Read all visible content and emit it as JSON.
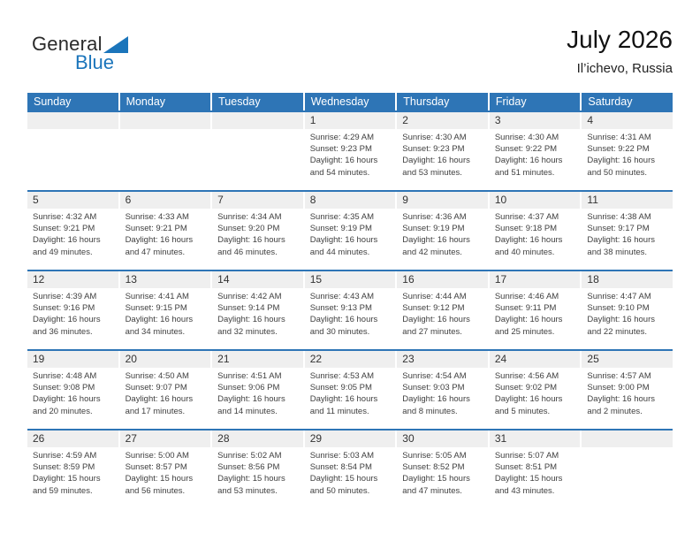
{
  "logo": {
    "part1": "General",
    "part2": "Blue"
  },
  "header": {
    "title": "July 2026",
    "location": "Il’ichevo, Russia"
  },
  "colors": {
    "header_blue": "#2e75b6",
    "logo_blue": "#1b75bb",
    "strip_gray": "#efefef",
    "body_text": "#404040"
  },
  "calendar": {
    "day_headers": [
      "Sunday",
      "Monday",
      "Tuesday",
      "Wednesday",
      "Thursday",
      "Friday",
      "Saturday"
    ],
    "weeks": [
      [
        {
          "day": ""
        },
        {
          "day": ""
        },
        {
          "day": ""
        },
        {
          "day": "1",
          "l1": "Sunrise: 4:29 AM",
          "l2": "Sunset: 9:23 PM",
          "l3": "Daylight: 16 hours",
          "l4": "and 54 minutes."
        },
        {
          "day": "2",
          "l1": "Sunrise: 4:30 AM",
          "l2": "Sunset: 9:23 PM",
          "l3": "Daylight: 16 hours",
          "l4": "and 53 minutes."
        },
        {
          "day": "3",
          "l1": "Sunrise: 4:30 AM",
          "l2": "Sunset: 9:22 PM",
          "l3": "Daylight: 16 hours",
          "l4": "and 51 minutes."
        },
        {
          "day": "4",
          "l1": "Sunrise: 4:31 AM",
          "l2": "Sunset: 9:22 PM",
          "l3": "Daylight: 16 hours",
          "l4": "and 50 minutes."
        }
      ],
      [
        {
          "day": "5",
          "l1": "Sunrise: 4:32 AM",
          "l2": "Sunset: 9:21 PM",
          "l3": "Daylight: 16 hours",
          "l4": "and 49 minutes."
        },
        {
          "day": "6",
          "l1": "Sunrise: 4:33 AM",
          "l2": "Sunset: 9:21 PM",
          "l3": "Daylight: 16 hours",
          "l4": "and 47 minutes."
        },
        {
          "day": "7",
          "l1": "Sunrise: 4:34 AM",
          "l2": "Sunset: 9:20 PM",
          "l3": "Daylight: 16 hours",
          "l4": "and 46 minutes."
        },
        {
          "day": "8",
          "l1": "Sunrise: 4:35 AM",
          "l2": "Sunset: 9:19 PM",
          "l3": "Daylight: 16 hours",
          "l4": "and 44 minutes."
        },
        {
          "day": "9",
          "l1": "Sunrise: 4:36 AM",
          "l2": "Sunset: 9:19 PM",
          "l3": "Daylight: 16 hours",
          "l4": "and 42 minutes."
        },
        {
          "day": "10",
          "l1": "Sunrise: 4:37 AM",
          "l2": "Sunset: 9:18 PM",
          "l3": "Daylight: 16 hours",
          "l4": "and 40 minutes."
        },
        {
          "day": "11",
          "l1": "Sunrise: 4:38 AM",
          "l2": "Sunset: 9:17 PM",
          "l3": "Daylight: 16 hours",
          "l4": "and 38 minutes."
        }
      ],
      [
        {
          "day": "12",
          "l1": "Sunrise: 4:39 AM",
          "l2": "Sunset: 9:16 PM",
          "l3": "Daylight: 16 hours",
          "l4": "and 36 minutes."
        },
        {
          "day": "13",
          "l1": "Sunrise: 4:41 AM",
          "l2": "Sunset: 9:15 PM",
          "l3": "Daylight: 16 hours",
          "l4": "and 34 minutes."
        },
        {
          "day": "14",
          "l1": "Sunrise: 4:42 AM",
          "l2": "Sunset: 9:14 PM",
          "l3": "Daylight: 16 hours",
          "l4": "and 32 minutes."
        },
        {
          "day": "15",
          "l1": "Sunrise: 4:43 AM",
          "l2": "Sunset: 9:13 PM",
          "l3": "Daylight: 16 hours",
          "l4": "and 30 minutes."
        },
        {
          "day": "16",
          "l1": "Sunrise: 4:44 AM",
          "l2": "Sunset: 9:12 PM",
          "l3": "Daylight: 16 hours",
          "l4": "and 27 minutes."
        },
        {
          "day": "17",
          "l1": "Sunrise: 4:46 AM",
          "l2": "Sunset: 9:11 PM",
          "l3": "Daylight: 16 hours",
          "l4": "and 25 minutes."
        },
        {
          "day": "18",
          "l1": "Sunrise: 4:47 AM",
          "l2": "Sunset: 9:10 PM",
          "l3": "Daylight: 16 hours",
          "l4": "and 22 minutes."
        }
      ],
      [
        {
          "day": "19",
          "l1": "Sunrise: 4:48 AM",
          "l2": "Sunset: 9:08 PM",
          "l3": "Daylight: 16 hours",
          "l4": "and 20 minutes."
        },
        {
          "day": "20",
          "l1": "Sunrise: 4:50 AM",
          "l2": "Sunset: 9:07 PM",
          "l3": "Daylight: 16 hours",
          "l4": "and 17 minutes."
        },
        {
          "day": "21",
          "l1": "Sunrise: 4:51 AM",
          "l2": "Sunset: 9:06 PM",
          "l3": "Daylight: 16 hours",
          "l4": "and 14 minutes."
        },
        {
          "day": "22",
          "l1": "Sunrise: 4:53 AM",
          "l2": "Sunset: 9:05 PM",
          "l3": "Daylight: 16 hours",
          "l4": "and 11 minutes."
        },
        {
          "day": "23",
          "l1": "Sunrise: 4:54 AM",
          "l2": "Sunset: 9:03 PM",
          "l3": "Daylight: 16 hours",
          "l4": "and 8 minutes."
        },
        {
          "day": "24",
          "l1": "Sunrise: 4:56 AM",
          "l2": "Sunset: 9:02 PM",
          "l3": "Daylight: 16 hours",
          "l4": "and 5 minutes."
        },
        {
          "day": "25",
          "l1": "Sunrise: 4:57 AM",
          "l2": "Sunset: 9:00 PM",
          "l3": "Daylight: 16 hours",
          "l4": "and 2 minutes."
        }
      ],
      [
        {
          "day": "26",
          "l1": "Sunrise: 4:59 AM",
          "l2": "Sunset: 8:59 PM",
          "l3": "Daylight: 15 hours",
          "l4": "and 59 minutes."
        },
        {
          "day": "27",
          "l1": "Sunrise: 5:00 AM",
          "l2": "Sunset: 8:57 PM",
          "l3": "Daylight: 15 hours",
          "l4": "and 56 minutes."
        },
        {
          "day": "28",
          "l1": "Sunrise: 5:02 AM",
          "l2": "Sunset: 8:56 PM",
          "l3": "Daylight: 15 hours",
          "l4": "and 53 minutes."
        },
        {
          "day": "29",
          "l1": "Sunrise: 5:03 AM",
          "l2": "Sunset: 8:54 PM",
          "l3": "Daylight: 15 hours",
          "l4": "and 50 minutes."
        },
        {
          "day": "30",
          "l1": "Sunrise: 5:05 AM",
          "l2": "Sunset: 8:52 PM",
          "l3": "Daylight: 15 hours",
          "l4": "and 47 minutes."
        },
        {
          "day": "31",
          "l1": "Sunrise: 5:07 AM",
          "l2": "Sunset: 8:51 PM",
          "l3": "Daylight: 15 hours",
          "l4": "and 43 minutes."
        },
        {
          "day": ""
        }
      ]
    ]
  }
}
